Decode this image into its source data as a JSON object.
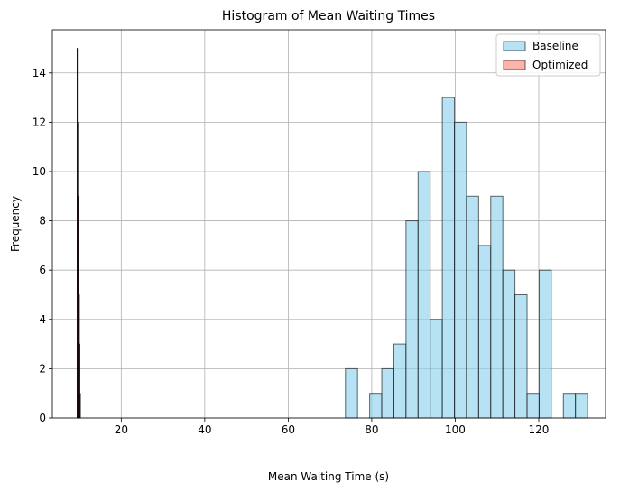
{
  "chart_data": {
    "type": "bar",
    "title": "Histogram of Mean Waiting Times",
    "xlabel": "Mean Waiting Time (s)",
    "ylabel": "Frequency",
    "xlim": [
      3.5,
      136
    ],
    "ylim": [
      0,
      15.75
    ],
    "xticks": [
      20,
      40,
      60,
      80,
      100,
      120
    ],
    "yticks": [
      0,
      2,
      4,
      6,
      8,
      10,
      12,
      14
    ],
    "grid": true,
    "legend_position": "top-right",
    "series": [
      {
        "name": "Baseline",
        "color": "#87ceeb",
        "bins": [
          {
            "x0": 73.7,
            "x1": 76.6,
            "count": 2
          },
          {
            "x0": 76.6,
            "x1": 79.5,
            "count": 0
          },
          {
            "x0": 79.5,
            "x1": 82.4,
            "count": 1
          },
          {
            "x0": 82.4,
            "x1": 85.3,
            "count": 2
          },
          {
            "x0": 85.3,
            "x1": 88.2,
            "count": 3
          },
          {
            "x0": 88.2,
            "x1": 91.1,
            "count": 8
          },
          {
            "x0": 91.1,
            "x1": 94.0,
            "count": 10
          },
          {
            "x0": 94.0,
            "x1": 96.9,
            "count": 4
          },
          {
            "x0": 96.9,
            "x1": 99.8,
            "count": 13
          },
          {
            "x0": 99.8,
            "x1": 102.7,
            "count": 12
          },
          {
            "x0": 102.7,
            "x1": 105.6,
            "count": 9
          },
          {
            "x0": 105.6,
            "x1": 108.5,
            "count": 7
          },
          {
            "x0": 108.5,
            "x1": 111.4,
            "count": 9
          },
          {
            "x0": 111.4,
            "x1": 114.3,
            "count": 6
          },
          {
            "x0": 114.3,
            "x1": 117.2,
            "count": 5
          },
          {
            "x0": 117.2,
            "x1": 120.1,
            "count": 1
          },
          {
            "x0": 120.1,
            "x1": 123.0,
            "count": 6
          },
          {
            "x0": 123.0,
            "x1": 125.9,
            "count": 0
          },
          {
            "x0": 125.9,
            "x1": 128.8,
            "count": 1
          },
          {
            "x0": 128.8,
            "x1": 131.7,
            "count": 1
          }
        ]
      },
      {
        "name": "Optimized",
        "color": "#fa8072",
        "bins": [
          {
            "x0": 9.4,
            "x1": 9.52,
            "count": 15
          },
          {
            "x0": 9.52,
            "x1": 9.64,
            "count": 12
          },
          {
            "x0": 9.64,
            "x1": 9.76,
            "count": 9
          },
          {
            "x0": 9.76,
            "x1": 9.88,
            "count": 7
          },
          {
            "x0": 9.88,
            "x1": 10.0,
            "count": 5
          },
          {
            "x0": 10.0,
            "x1": 10.12,
            "count": 3
          },
          {
            "x0": 10.12,
            "x1": 10.24,
            "count": 1
          }
        ]
      }
    ]
  }
}
